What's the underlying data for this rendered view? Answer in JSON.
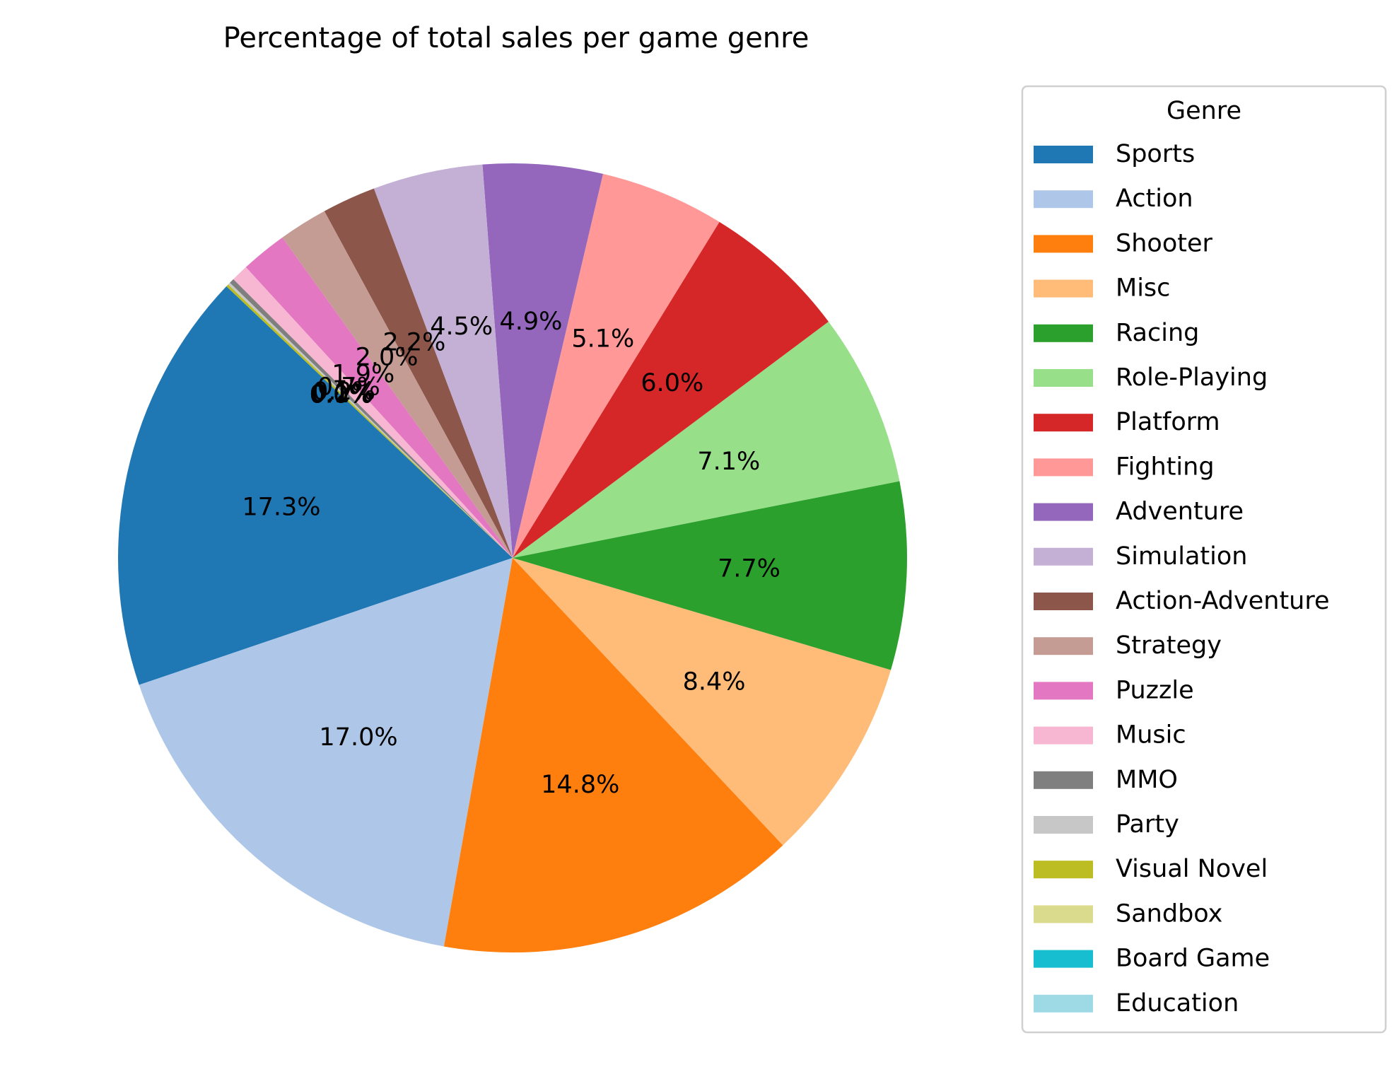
{
  "chart_data": {
    "type": "pie",
    "title": "Percentage of total sales per game genre",
    "legend_title": "Genre",
    "legend_position": "right",
    "start_angle_deg": 136.5,
    "direction": "counterclockwise",
    "slices": [
      {
        "label": "Sports",
        "value": 17.3,
        "pct_label": "17.3%",
        "color": "#1f77b4"
      },
      {
        "label": "Action",
        "value": 17.0,
        "pct_label": "17.0%",
        "color": "#aec7e8"
      },
      {
        "label": "Shooter",
        "value": 14.8,
        "pct_label": "14.8%",
        "color": "#ff7f0e"
      },
      {
        "label": "Misc",
        "value": 8.4,
        "pct_label": "8.4%",
        "color": "#ffbb78"
      },
      {
        "label": "Racing",
        "value": 7.7,
        "pct_label": "7.7%",
        "color": "#2ca02c"
      },
      {
        "label": "Role-Playing",
        "value": 7.1,
        "pct_label": "7.1%",
        "color": "#98df8a"
      },
      {
        "label": "Platform",
        "value": 6.0,
        "pct_label": "6.0%",
        "color": "#d62728"
      },
      {
        "label": "Fighting",
        "value": 5.1,
        "pct_label": "5.1%",
        "color": "#ff9896"
      },
      {
        "label": "Adventure",
        "value": 4.9,
        "pct_label": "4.9%",
        "color": "#9467bd"
      },
      {
        "label": "Simulation",
        "value": 4.5,
        "pct_label": "4.5%",
        "color": "#c5b0d5"
      },
      {
        "label": "Action-Adventure",
        "value": 2.2,
        "pct_label": "2.2%",
        "color": "#8c564b"
      },
      {
        "label": "Strategy",
        "value": 2.0,
        "pct_label": "2.0%",
        "color": "#c49c94"
      },
      {
        "label": "Puzzle",
        "value": 1.9,
        "pct_label": "1.9%",
        "color": "#e377c2"
      },
      {
        "label": "Music",
        "value": 0.7,
        "pct_label": "0.7%",
        "color": "#f7b6d2"
      },
      {
        "label": "MMO",
        "value": 0.2,
        "pct_label": "0.2%",
        "color": "#7f7f7f"
      },
      {
        "label": "Party",
        "value": 0.1,
        "pct_label": "0.1%",
        "color": "#c7c7c7"
      },
      {
        "label": "Visual Novel",
        "value": 0.1,
        "pct_label": "0.1%",
        "color": "#bcbd22"
      },
      {
        "label": "Sandbox",
        "value": 0.0,
        "pct_label": "0.0%",
        "color": "#dbdb8d"
      },
      {
        "label": "Board Game",
        "value": 0.0,
        "pct_label": "0.0%",
        "color": "#17becf"
      },
      {
        "label": "Education",
        "value": 0.0,
        "pct_label": "0.0%",
        "color": "#9edae5"
      }
    ]
  }
}
